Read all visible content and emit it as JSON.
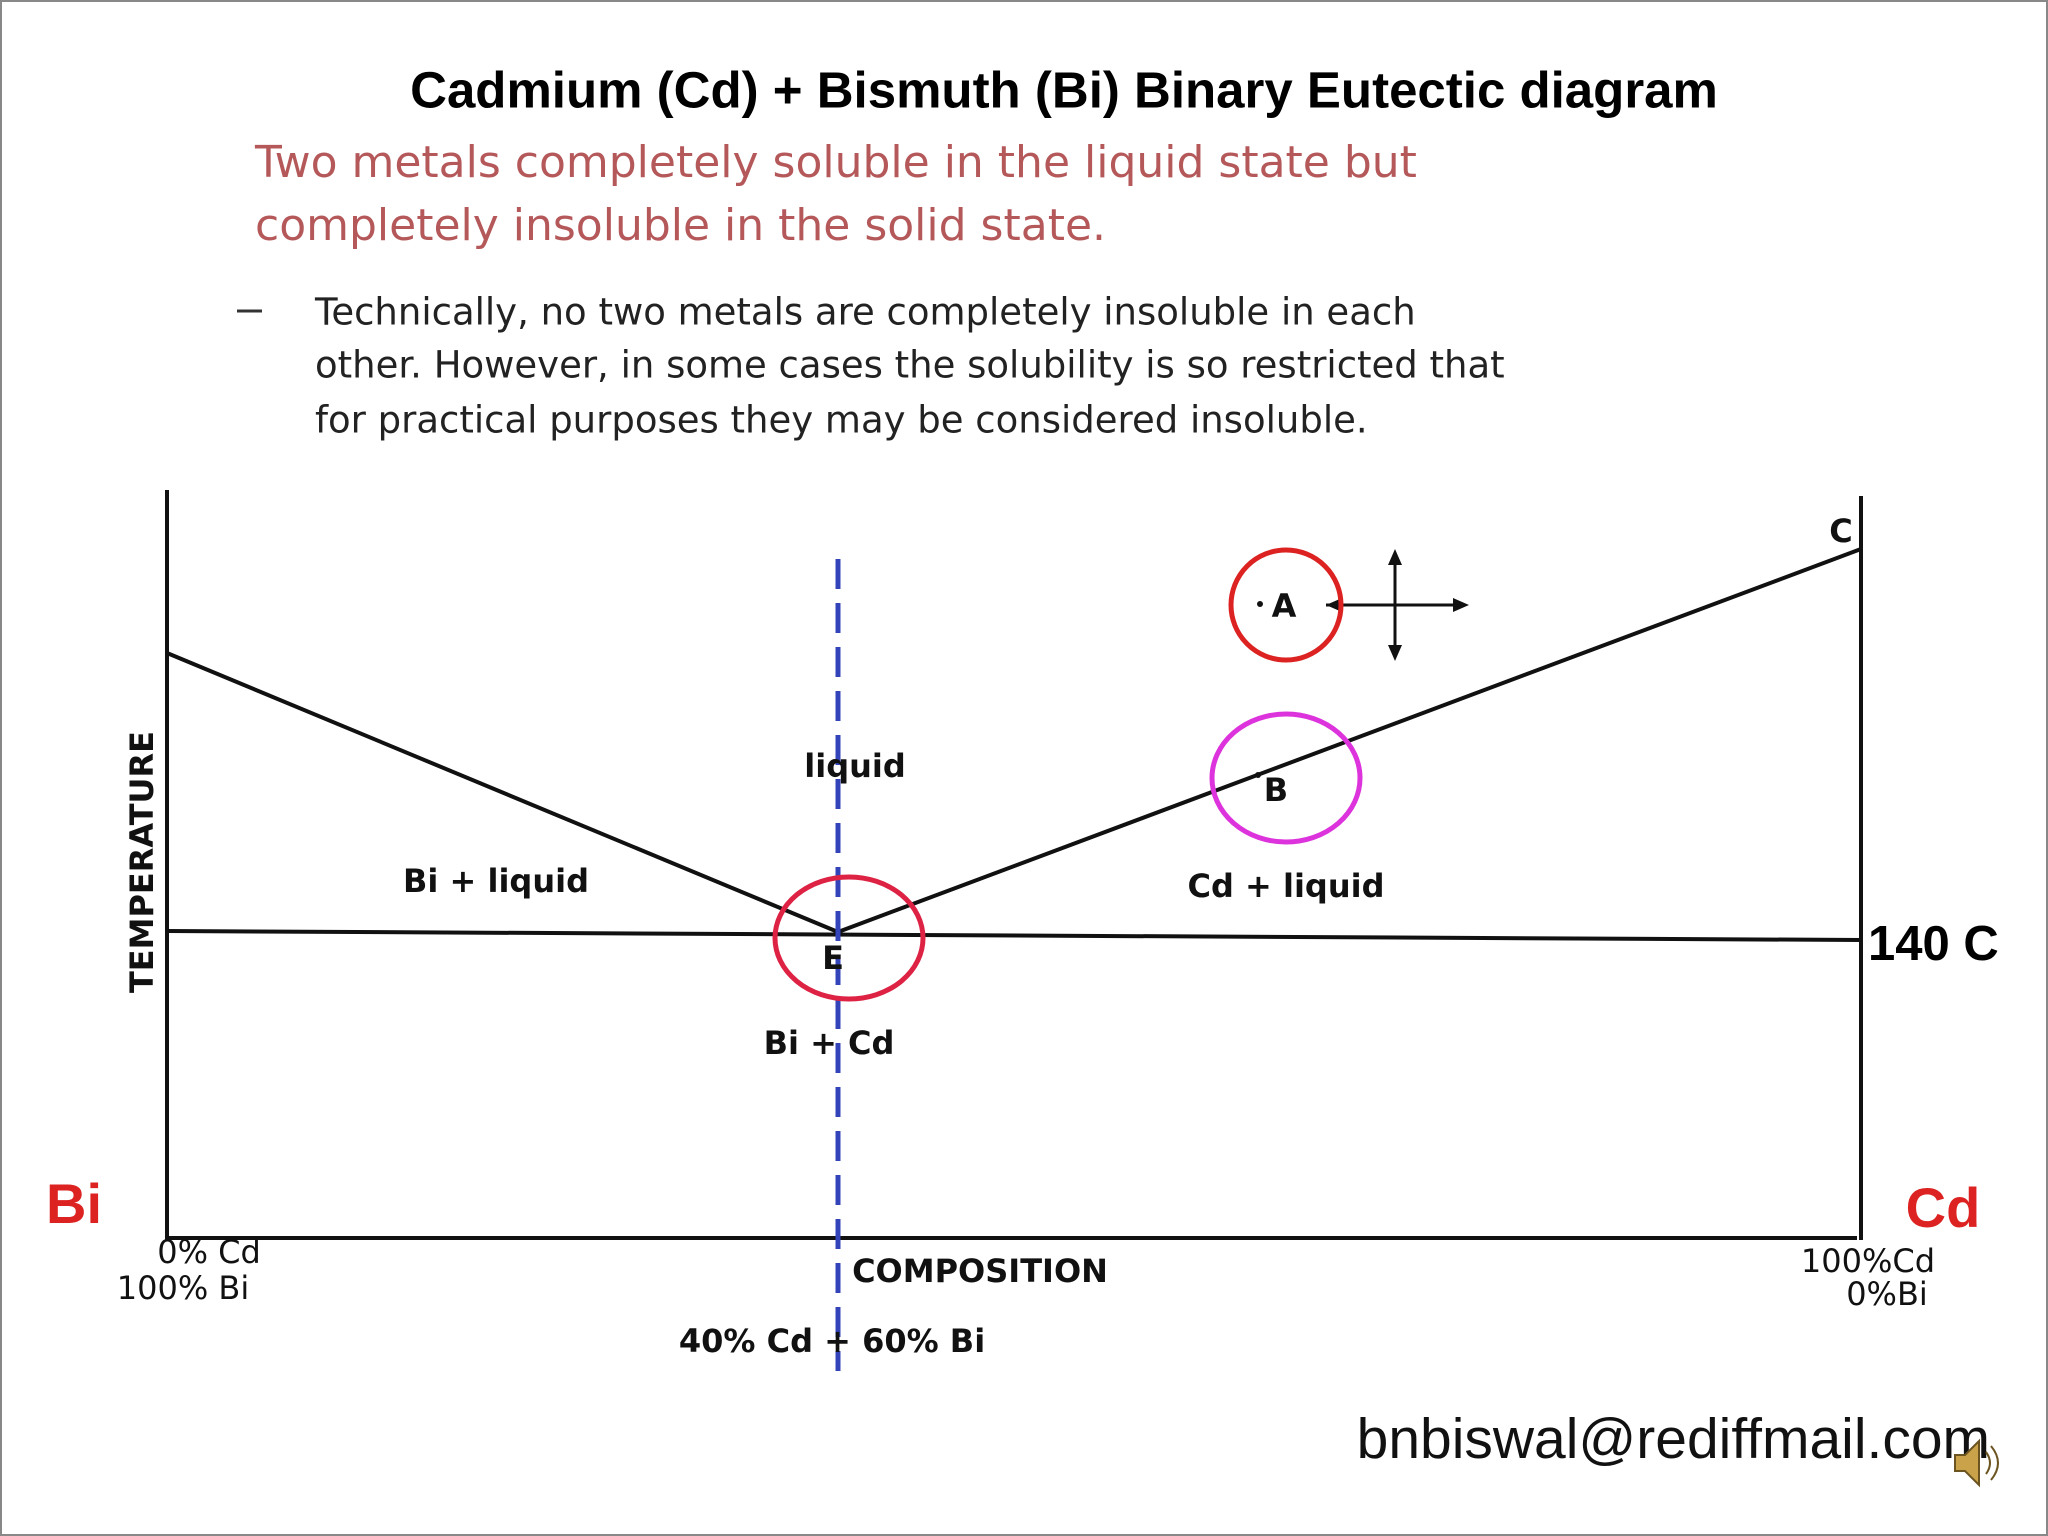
{
  "header": {
    "title": "Cadmium (Cd) + Bismuth (Bi) Binary Eutectic diagram",
    "subtitle": [
      "Two metals completely soluble in the liquid state but",
      "completely insoluble in the solid state."
    ],
    "bullet": [
      "Technically, no two metals are completely insoluble in each",
      "other. However, in some cases the solubility is so restricted that",
      "for practical purposes they may be considered insoluble."
    ]
  },
  "diagram": {
    "y_axis_label": "TEMPERATURE",
    "x_axis_label": "COMPOSITION",
    "regions": [
      "liquid",
      "Bi + liquid",
      "Cd + liquid",
      "Bi + Cd"
    ],
    "points": [
      "A",
      "B",
      "C",
      "E"
    ],
    "eutectic_temperature": "140 C",
    "eutectic_composition": "40% Cd + 60% Bi",
    "left_end": {
      "metal": "Bi",
      "lines": [
        "0% Cd",
        "100% Bi"
      ]
    },
    "right_end": {
      "metal": "Cd",
      "lines": [
        "100%Cd",
        "0%Bi"
      ]
    }
  },
  "footer": {
    "email": "bnbiswal@rediffmail.com"
  }
}
